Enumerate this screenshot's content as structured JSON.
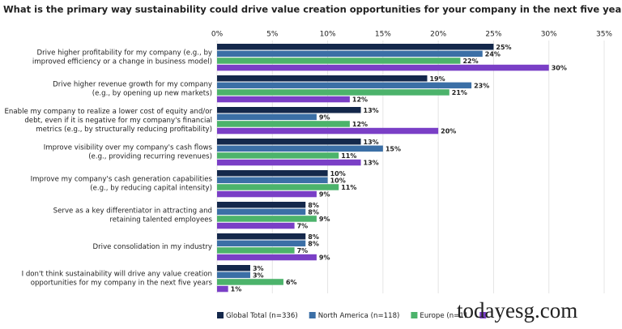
{
  "chart_data": {
    "type": "bar",
    "orientation": "horizontal",
    "title": "What is the primary way sustainability could drive value creation opportunities for your company in the next five years?",
    "categories": [
      "Drive higher profitability for my company (e.g., by\nimproved efficiency or a change in business model)",
      "Drive higher revenue growth for my company\n(e.g., by opening up new markets)",
      "Enable my company to realize a lower cost of equity and/or\ndebt, even if it is negative for my company's financial\nmetrics (e.g., by structurally reducing profitability)",
      "Improve visibility over my company's cash flows\n(e.g., providing recurring revenues)",
      "Improve my company's cash generation capabilities\n(e.g., by reducing capital intensity)",
      "Serve as a key differentiator in attracting and\nretaining talented employees",
      "Drive consolidation in my industry",
      "I don't think sustainability will drive any value creation\nopportunities for my company in the next five years"
    ],
    "series": [
      {
        "name": "Global Total (n=336)",
        "color": "#14284b",
        "values": [
          25,
          19,
          13,
          13,
          10,
          8,
          8,
          3
        ],
        "value_labels": [
          "25%",
          "19%",
          "13%",
          "13%",
          "10%",
          "8%",
          "8%",
          "3%"
        ]
      },
      {
        "name": "North America (n=118)",
        "color": "#3b6fa6",
        "values": [
          24,
          23,
          9,
          15,
          10,
          8,
          8,
          3
        ],
        "value_labels": [
          "24%",
          "23%",
          "9%",
          "15%",
          "10%",
          "8%",
          "8%",
          "3%"
        ]
      },
      {
        "name": "Europe (n=11",
        "color": "#4cb36b",
        "values": [
          22,
          21,
          12,
          11,
          11,
          9,
          7,
          6
        ],
        "value_labels": [
          "22%",
          "21%",
          "12%",
          "11%",
          "11%",
          "9%",
          "7%",
          "6%"
        ]
      },
      {
        "color": "#7a3fc6",
        "values": [
          30,
          12,
          20,
          13,
          9,
          7,
          9,
          1
        ],
        "value_labels": [
          "30%",
          "12%",
          "20%",
          "13%",
          "9%",
          "7%",
          "9%",
          "1%"
        ]
      }
    ],
    "xlim": [
      0,
      35
    ],
    "xticks": [
      {
        "value": 0,
        "label": "0%"
      },
      {
        "value": 5,
        "label": "5%"
      },
      {
        "value": 10,
        "label": "10%"
      },
      {
        "value": 15,
        "label": "15%"
      },
      {
        "value": 20,
        "label": "20%"
      },
      {
        "value": 25,
        "label": "25%"
      },
      {
        "value": 30,
        "label": "30%"
      },
      {
        "value": 35,
        "label": "35%"
      }
    ],
    "grid": true,
    "watermark": "todayesg.com"
  }
}
